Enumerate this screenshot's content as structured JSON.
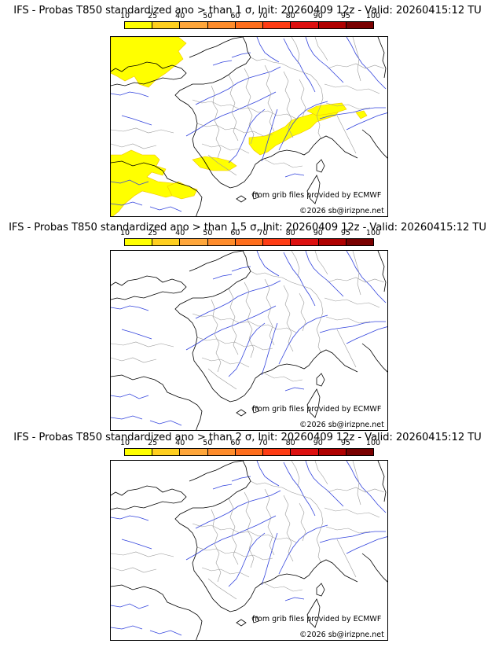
{
  "colorbar": {
    "labels": [
      "10",
      "25",
      "40",
      "50",
      "60",
      "70",
      "80",
      "90",
      "95",
      "100"
    ],
    "colors": [
      "#ffff00",
      "#ffcf1f",
      "#ffa63a",
      "#ff8c2b",
      "#ff6e1c",
      "#ff3c14",
      "#dd1010",
      "#b00000",
      "#7a0000"
    ]
  },
  "credits": {
    "source": "from grib files provided by ECMWF",
    "copyright": "©2026 sb@irizpne.net"
  },
  "panels": [
    {
      "title": "IFS - Probas T850  standardized ano > than 1 σ, Init: 20260409 12z - Valid: 20260415:12 TU"
    },
    {
      "title": "IFS - Probas T850  standardized ano > than 1.5 σ, Init: 20260409 12z - Valid: 20260415:12 TU"
    },
    {
      "title": "IFS - Probas T850  standardized ano > than 2 σ, Init: 20260409 12z - Valid: 20260415:12 TU"
    }
  ]
}
